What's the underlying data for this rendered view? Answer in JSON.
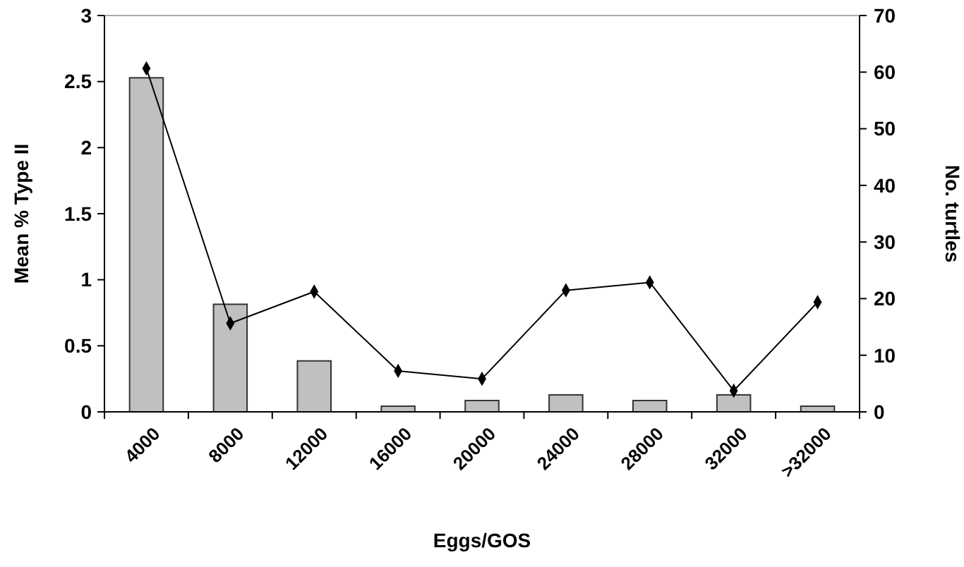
{
  "chart_data": {
    "type": "bar",
    "xlabel": "Eggs/GOS",
    "ylabel": "Mean % Type II",
    "y2label": "No. turtles",
    "categories": [
      "4000",
      "8000",
      "12000",
      "16000",
      "20000",
      "24000",
      "28000",
      "32000",
      ">32000"
    ],
    "series": [
      {
        "axis": "y2",
        "color": "#c0c0c0",
        "values": [
          59,
          19,
          9,
          1,
          2,
          3,
          2,
          3,
          1
        ]
      },
      {
        "type": "line",
        "axis": "y",
        "color": "#000000",
        "marker": "diamond",
        "values": [
          2.6,
          0.67,
          0.91,
          0.31,
          0.25,
          0.92,
          0.98,
          0.16,
          0.83
        ]
      }
    ],
    "ylim": [
      0,
      3
    ],
    "yticks": [
      0,
      0.5,
      1,
      1.5,
      2,
      2.5,
      3
    ],
    "y2lim": [
      0,
      70
    ],
    "y2ticks": [
      0,
      10,
      20,
      30,
      40,
      50,
      60,
      70
    ],
    "grid": false
  }
}
